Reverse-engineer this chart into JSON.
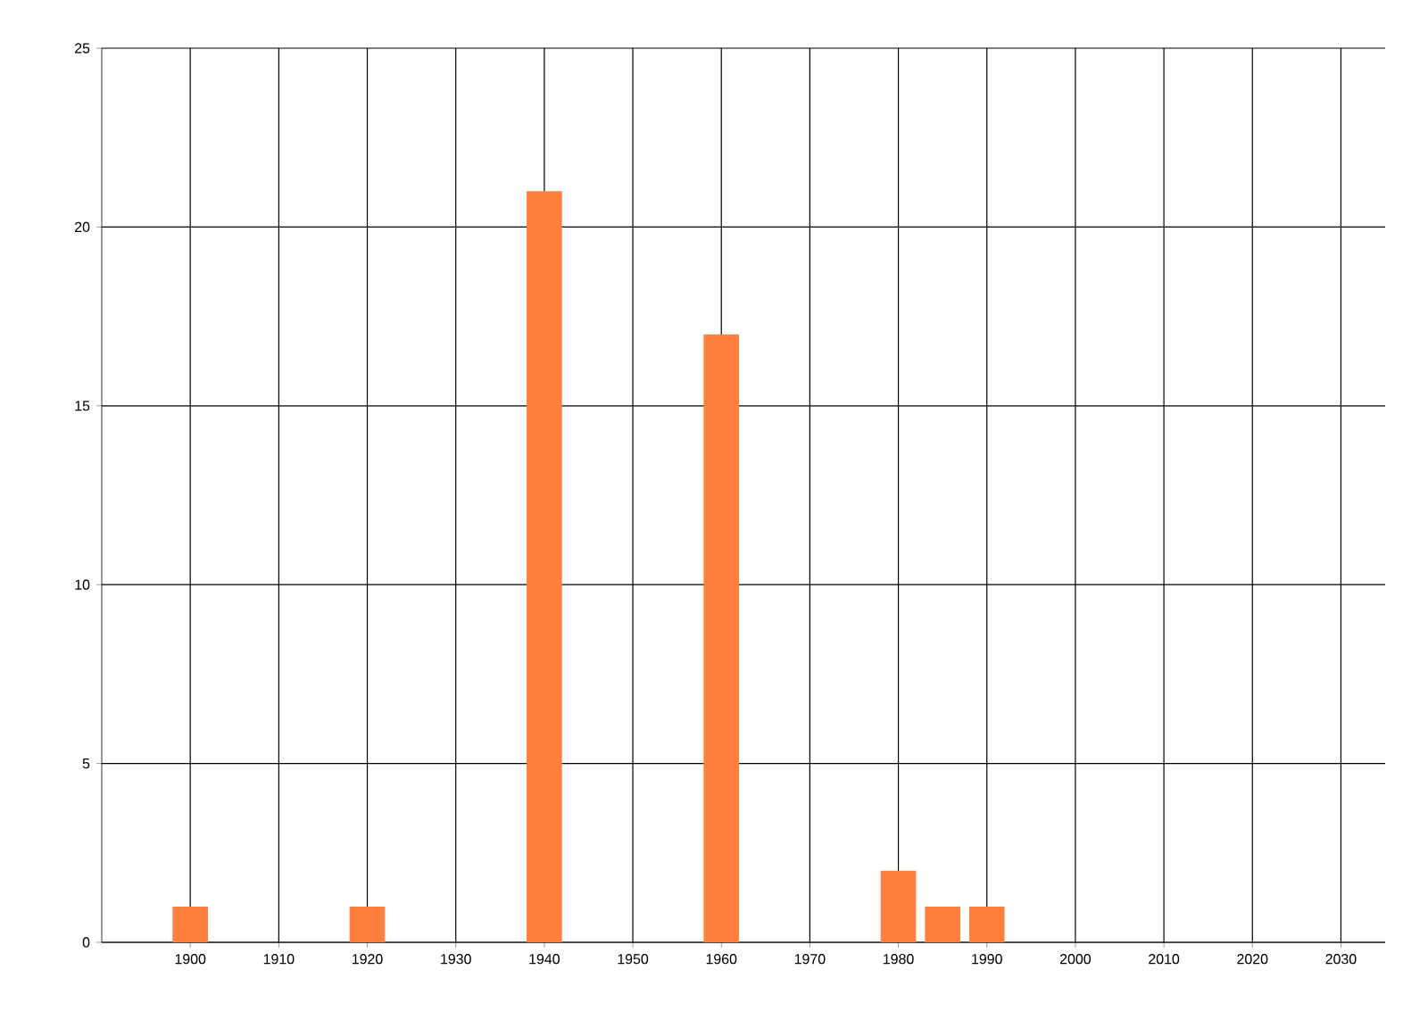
{
  "chart_data": {
    "type": "bar",
    "x": [
      1900,
      1920,
      1940,
      1960,
      1980,
      1985,
      1990
    ],
    "values": [
      1,
      1,
      21,
      17,
      2,
      1,
      1
    ],
    "color": "#ff7f3f",
    "xlim": [
      1890,
      2035
    ],
    "ylim": [
      0,
      25
    ],
    "xticks": [
      1900,
      1910,
      1920,
      1930,
      1940,
      1950,
      1960,
      1970,
      1980,
      1990,
      2000,
      2010,
      2020,
      2030
    ],
    "yticks": [
      0,
      5,
      10,
      15,
      20,
      25
    ],
    "grid": true
  }
}
